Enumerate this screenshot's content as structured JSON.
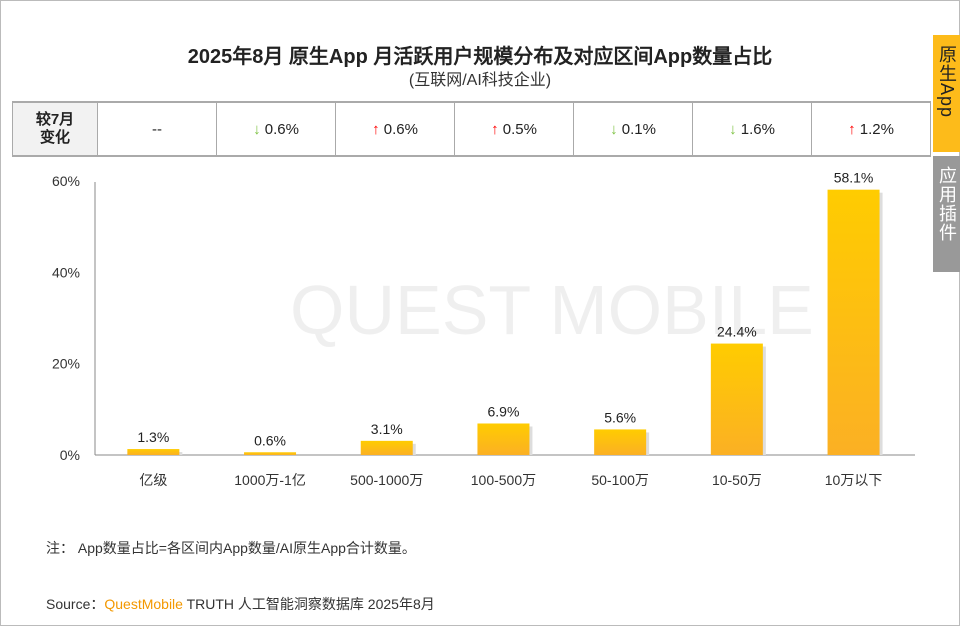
{
  "title": "2025年8月 原生App 月活跃用户规模分布及对应区间App数量占比",
  "subtitle": "(互联网/AI科技企业)",
  "side_tabs": [
    {
      "label": "原生App",
      "active": true,
      "color": "#fdbb1a"
    },
    {
      "label": "应用插件",
      "active": false,
      "color": "#999999"
    }
  ],
  "change_table": {
    "header": "较7月\n变化",
    "cells": [
      {
        "dir": "none",
        "value": "--"
      },
      {
        "dir": "down",
        "value": "0.6%"
      },
      {
        "dir": "up",
        "value": "0.6%"
      },
      {
        "dir": "up",
        "value": "0.5%"
      },
      {
        "dir": "down",
        "value": "0.1%"
      },
      {
        "dir": "down",
        "value": "1.6%"
      },
      {
        "dir": "up",
        "value": "1.2%"
      }
    ]
  },
  "chart_data": {
    "type": "bar",
    "categories": [
      "亿级",
      "1000万-1亿",
      "500-1000万",
      "100-500万",
      "50-100万",
      "10-50万",
      "10万以下"
    ],
    "values": [
      1.3,
      0.6,
      3.1,
      6.9,
      5.6,
      24.4,
      58.1
    ],
    "data_labels": [
      "1.3%",
      "0.6%",
      "3.1%",
      "6.9%",
      "5.6%",
      "24.4%",
      "58.1%"
    ],
    "yticks": [
      "0%",
      "20%",
      "40%",
      "60%"
    ],
    "ylim": [
      0,
      60
    ],
    "bar_color": "#fdbb1a",
    "grid": false
  },
  "watermark": "QUEST MOBILE",
  "note": "注：  App数量占比=各区间内App数量/AI原生App合计数量。",
  "source": {
    "prefix": "Source：",
    "brand": "QuestMobile",
    "rest": " TRUTH 人工智能洞察数据库 2025年8月"
  }
}
